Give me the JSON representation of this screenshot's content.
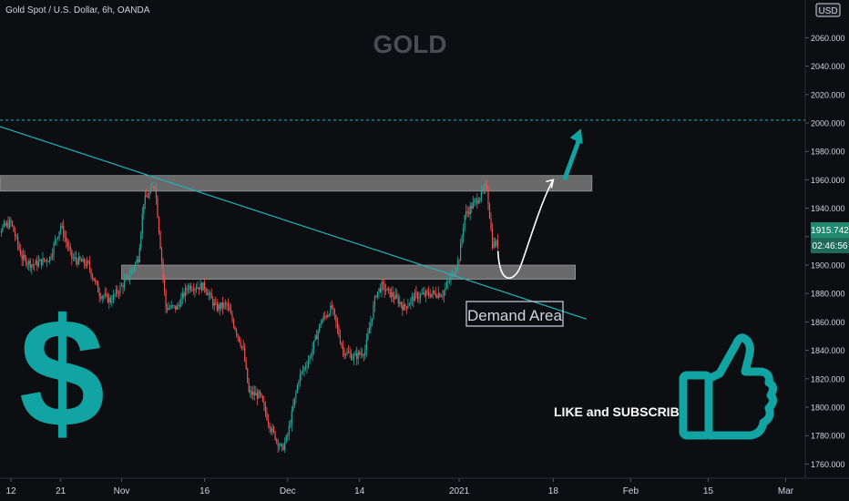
{
  "header": {
    "symbol_title": "Gold Spot / U.S. Dollar, 6h, OANDA",
    "watermark": "GOLD",
    "currency_label": "USD"
  },
  "annotations": {
    "demand_label": "Demand Area",
    "cta_text": "LIKE and SUBSCRIBE",
    "dollar_icon": "dollar-sign-icon",
    "thumb_icon": "thumbs-up-icon"
  },
  "price_badge": {
    "last_price": "1915.742",
    "countdown": "02:46:56"
  },
  "colors": {
    "background": "#0d0e12",
    "up_candle": "#26a69a",
    "down_candle": "#ef5350",
    "trendline": "#1fb5bd",
    "accent_teal": "#12a3a3",
    "zone_fill": "#8a8a8a",
    "axis_text": "#d1d4dc",
    "watermark": "#4a4c52",
    "price_badge": "#1f8a6e"
  },
  "chart_data": {
    "type": "candlestick",
    "title": "Gold Spot / U.S. Dollar, 6h, OANDA",
    "y_axis": {
      "unit": "USD",
      "ylim": [
        1750,
        2075
      ],
      "tick_values": [
        1760,
        1780,
        1800,
        1820,
        1840,
        1860,
        1880,
        1900,
        1920,
        1940,
        1960,
        1980,
        2000,
        2020,
        2040,
        2060
      ],
      "tick_labels": [
        "1760.000",
        "1780.000",
        "1800.000",
        "1820.000",
        "1840.000",
        "1860.000",
        "1880.000",
        "1900.000",
        "1920.000",
        "1940.000",
        "1960.000",
        "1980.000",
        "2000.000",
        "2020.000",
        "2040.000",
        "2060.000"
      ]
    },
    "x_axis": {
      "tick_labels": [
        "12",
        "21",
        "Nov",
        "16",
        "Dec",
        "14",
        "2021",
        "18",
        "Feb",
        "15",
        "Mar"
      ],
      "tick_dates": [
        "2020-10-12",
        "2020-10-21",
        "2020-11-01",
        "2020-11-16",
        "2020-12-01",
        "2020-12-14",
        "2021-01-01",
        "2021-01-18",
        "2021-02-01",
        "2021-02-15",
        "2021-03-01"
      ]
    },
    "price_path": [
      [
        "2020-10-08",
        1895
      ],
      [
        "2020-10-10",
        1925
      ],
      [
        "2020-10-12",
        1930
      ],
      [
        "2020-10-14",
        1905
      ],
      [
        "2020-10-16",
        1900
      ],
      [
        "2020-10-19",
        1905
      ],
      [
        "2020-10-21",
        1928
      ],
      [
        "2020-10-23",
        1905
      ],
      [
        "2020-10-26",
        1900
      ],
      [
        "2020-10-28",
        1880
      ],
      [
        "2020-10-30",
        1875
      ],
      [
        "2020-11-02",
        1890
      ],
      [
        "2020-11-04",
        1905
      ],
      [
        "2020-11-05",
        1945
      ],
      [
        "2020-11-06",
        1950
      ],
      [
        "2020-11-07",
        1958
      ],
      [
        "2020-11-09",
        1870
      ],
      [
        "2020-11-11",
        1870
      ],
      [
        "2020-11-13",
        1885
      ],
      [
        "2020-11-16",
        1885
      ],
      [
        "2020-11-18",
        1870
      ],
      [
        "2020-11-20",
        1872
      ],
      [
        "2020-11-23",
        1840
      ],
      [
        "2020-11-24",
        1810
      ],
      [
        "2020-11-26",
        1808
      ],
      [
        "2020-11-28",
        1785
      ],
      [
        "2020-11-30",
        1770
      ],
      [
        "2020-12-01",
        1780
      ],
      [
        "2020-12-03",
        1820
      ],
      [
        "2020-12-05",
        1835
      ],
      [
        "2020-12-07",
        1860
      ],
      [
        "2020-12-09",
        1870
      ],
      [
        "2020-12-11",
        1840
      ],
      [
        "2020-12-13",
        1835
      ],
      [
        "2020-12-15",
        1840
      ],
      [
        "2020-12-17",
        1880
      ],
      [
        "2020-12-18",
        1885
      ],
      [
        "2020-12-21",
        1875
      ],
      [
        "2020-12-22",
        1870
      ],
      [
        "2020-12-24",
        1878
      ],
      [
        "2020-12-27",
        1880
      ],
      [
        "2020-12-29",
        1880
      ],
      [
        "2020-12-31",
        1895
      ],
      [
        "2021-01-01",
        1905
      ],
      [
        "2021-01-02",
        1935
      ],
      [
        "2021-01-04",
        1945
      ],
      [
        "2021-01-05",
        1950
      ],
      [
        "2021-01-06",
        1955
      ],
      [
        "2021-01-07",
        1915
      ],
      [
        "2021-01-08",
        1915
      ]
    ],
    "horizontal_levels": [
      {
        "name": "dashed-resistance",
        "price": 2002
      }
    ],
    "zones": [
      {
        "name": "upper-resistance-zone",
        "price_range": [
          1952,
          1963
        ],
        "date_range": [
          "2020-10-08",
          "2021-01-25"
        ]
      },
      {
        "name": "demand-zone",
        "price_range": [
          1890,
          1900
        ],
        "date_range": [
          "2020-11-01",
          "2021-01-22"
        ]
      }
    ],
    "trendline": {
      "from": [
        "2020-10-08",
        2000
      ],
      "to": [
        "2021-01-24",
        1862
      ]
    },
    "projection": {
      "curve": [
        [
          "2021-01-08",
          1910
        ],
        [
          "2021-01-10",
          1893
        ],
        [
          "2021-01-18",
          1960
        ]
      ],
      "arrow": [
        [
          "2021-01-20",
          1960
        ],
        [
          "2021-01-23",
          1996
        ]
      ]
    },
    "grid": false,
    "legend": "none"
  }
}
